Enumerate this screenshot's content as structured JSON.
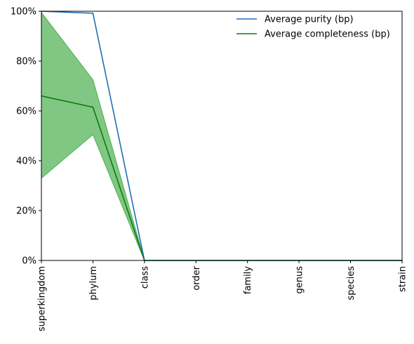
{
  "chart_data": {
    "type": "line",
    "categories": [
      "superkingdom",
      "phylum",
      "class",
      "order",
      "family",
      "genus",
      "species",
      "strain"
    ],
    "ylim": [
      0,
      100
    ],
    "y_ticks": [
      "0%",
      "20%",
      "40%",
      "60%",
      "80%",
      "100%"
    ],
    "y_tick_values": [
      0,
      20,
      40,
      60,
      80,
      100
    ],
    "legend_position": "top-right",
    "grid": false,
    "series": [
      {
        "name": "Average purity (bp)",
        "color": "#1f6fb4",
        "values": [
          100,
          99.2,
          0,
          0,
          0,
          0,
          0,
          0
        ]
      },
      {
        "name": "Average completeness (bp)",
        "color": "#0a7d0a",
        "values": [
          66,
          61.5,
          0,
          0,
          0,
          0,
          0,
          0
        ],
        "band": {
          "color": "#4caf50",
          "upper": [
            99.5,
            72.5,
            0,
            0,
            0,
            0,
            0,
            0
          ],
          "lower": [
            33,
            50.5,
            0,
            0,
            0,
            0,
            0,
            0
          ]
        }
      }
    ]
  }
}
